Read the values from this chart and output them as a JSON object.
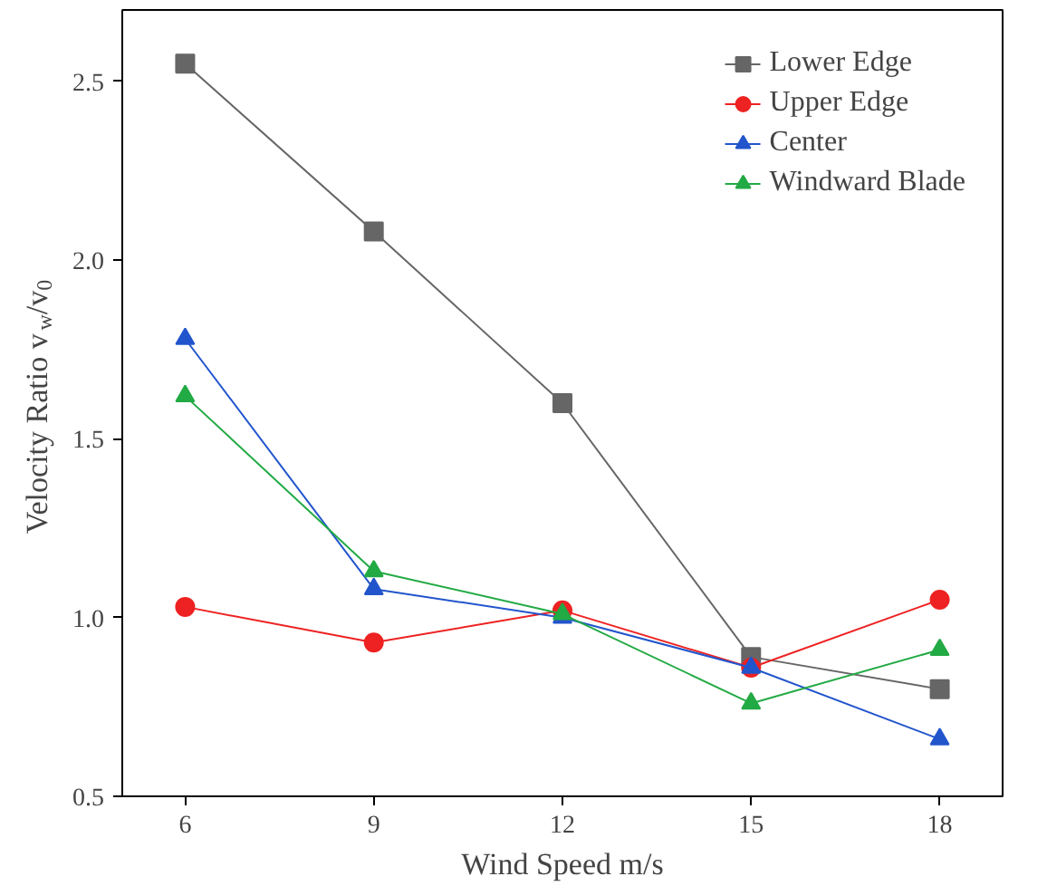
{
  "chart_data": {
    "type": "line",
    "xlabel": "Wind Speed m/s",
    "ylabel": "Velocity Ratio v$_{w}$/v$_{0}$",
    "x": [
      6,
      9,
      12,
      15,
      18
    ],
    "xlim": [
      5,
      19
    ],
    "xticks": [
      6,
      9,
      12,
      15,
      18
    ],
    "ylim": [
      0.5,
      2.7
    ],
    "yticks": [
      0.5,
      {
        "value": 1.0,
        "label": "1.0"
      },
      1.5,
      {
        "value": 2.0,
        "label": "2.0"
      },
      2.5
    ],
    "grid": false,
    "legend": "top right",
    "series": [
      {
        "name": "Lower Edge",
        "color": "#666666",
        "marker": "square",
        "values": [
          2.55,
          2.08,
          1.6,
          0.89,
          0.8
        ]
      },
      {
        "name": "Upper Edge",
        "color": "#ee2222",
        "marker": "circle",
        "values": [
          1.03,
          0.93,
          1.02,
          0.86,
          1.05
        ]
      },
      {
        "name": "Center",
        "color": "#2255cc",
        "marker": "triangle",
        "values": [
          1.78,
          1.08,
          1.0,
          0.86,
          0.66
        ]
      },
      {
        "name": "Windward Blade",
        "color": "#22aa44",
        "marker": "triangle",
        "values": [
          1.62,
          1.13,
          1.01,
          0.76,
          0.91
        ]
      }
    ]
  }
}
